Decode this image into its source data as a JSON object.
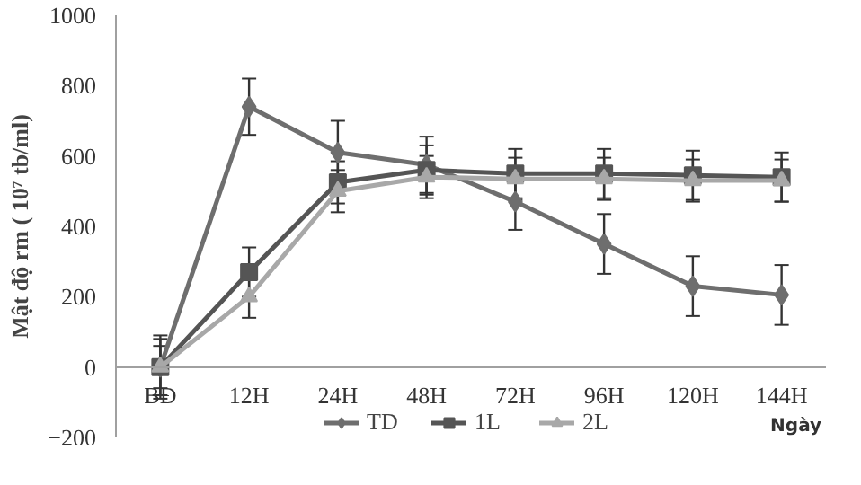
{
  "chart_data": {
    "type": "line",
    "categories": [
      "BĐ",
      "12H",
      "24H",
      "48H",
      "72H",
      "96H",
      "120H",
      "144H"
    ],
    "ylabel": "Mật độ rm ( 10⁷ tb/ml)",
    "xlabel": "Ngày",
    "ylim": [
      -200,
      1000
    ],
    "yticks": [
      -200,
      0,
      200,
      400,
      600,
      800,
      1000
    ],
    "grid": false,
    "legend": "bottom",
    "series": [
      {
        "name": "TD",
        "color": "#6e6e6e",
        "marker": "diamond",
        "values": [
          0,
          740,
          610,
          575,
          470,
          350,
          230,
          205
        ],
        "errors": [
          90,
          80,
          90,
          80,
          80,
          85,
          85,
          85
        ]
      },
      {
        "name": "1L",
        "color": "#555555",
        "marker": "square",
        "values": [
          0,
          270,
          525,
          560,
          550,
          550,
          545,
          540
        ],
        "errors": [
          80,
          70,
          60,
          70,
          70,
          70,
          70,
          70
        ]
      },
      {
        "name": "2L",
        "color": "#a8a8a8",
        "marker": "triangle",
        "values": [
          0,
          200,
          500,
          540,
          535,
          535,
          530,
          530
        ],
        "errors": [
          60,
          60,
          60,
          60,
          60,
          60,
          60,
          60
        ]
      }
    ]
  }
}
